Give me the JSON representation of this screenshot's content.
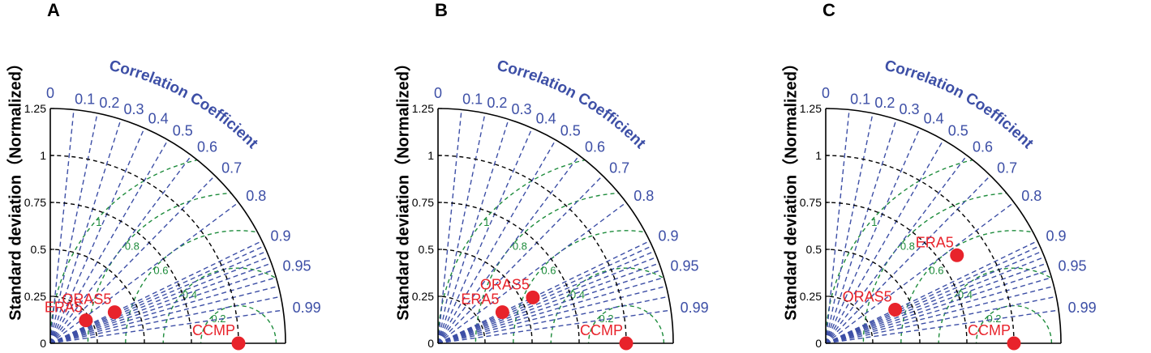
{
  "colors": {
    "corr": "#3d4fa6",
    "std": "#000000",
    "rms": "#1e8c3c",
    "point": "#e8232b",
    "point_label": "#e8232b"
  },
  "chart_data": [
    {
      "type": "taylor",
      "panel_label": "A",
      "ylabel": "Standard deviation（Normalized）",
      "corr_axis_label": "Correlation Coefficient",
      "std_ticks": [
        "0",
        "0.25",
        "0.5",
        "0.75",
        "1",
        "1.25"
      ],
      "std_range": [
        0,
        1.25
      ],
      "corr_ticks": [
        "0",
        "0.1",
        "0.2",
        "0.3",
        "0.4",
        "0.5",
        "0.6",
        "0.7",
        "0.8",
        "0.9",
        "0.95",
        "0.99"
      ],
      "std_arcs": [
        0.25,
        0.5,
        0.75,
        1
      ],
      "rms_arcs": [
        "0.2",
        "0.4",
        "0.6",
        "0.8",
        "1"
      ],
      "points": [
        {
          "name": "CCMP",
          "std": 1.0,
          "corr": 1.0
        },
        {
          "name": "ORAS5",
          "std": 0.38,
          "corr": 0.9
        },
        {
          "name": "ERA5",
          "std": 0.225,
          "corr": 0.84
        }
      ]
    },
    {
      "type": "taylor",
      "panel_label": "B",
      "ylabel": "Standard deviation（Normalized）",
      "corr_axis_label": "Correlation Coefficient",
      "std_ticks": [
        "0",
        "0.25",
        "0.5",
        "0.75",
        "1",
        "1.25"
      ],
      "std_range": [
        0,
        1.25
      ],
      "corr_ticks": [
        "0",
        "0.1",
        "0.2",
        "0.3",
        "0.4",
        "0.5",
        "0.6",
        "0.7",
        "0.8",
        "0.9",
        "0.95",
        "0.99"
      ],
      "std_arcs": [
        0.25,
        0.5,
        0.75,
        1
      ],
      "rms_arcs": [
        "0.2",
        "0.4",
        "0.6",
        "0.8",
        "1"
      ],
      "points": [
        {
          "name": "CCMP",
          "std": 1.0,
          "corr": 1.0
        },
        {
          "name": "ORAS5",
          "std": 0.56,
          "corr": 0.9
        },
        {
          "name": "ERA5",
          "std": 0.38,
          "corr": 0.9
        }
      ]
    },
    {
      "type": "taylor",
      "panel_label": "C",
      "ylabel": "Standard deviation（Normalized）",
      "corr_axis_label": "Correlation Coefficient",
      "std_ticks": [
        "0",
        "0.25",
        "0.5",
        "0.75",
        "1",
        "1.25"
      ],
      "std_range": [
        0,
        1.25
      ],
      "corr_ticks": [
        "0",
        "0.1",
        "0.2",
        "0.3",
        "0.4",
        "0.5",
        "0.6",
        "0.7",
        "0.8",
        "0.9",
        "0.95",
        "0.99"
      ],
      "std_arcs": [
        0.25,
        0.5,
        0.75,
        1
      ],
      "rms_arcs": [
        "0.2",
        "0.4",
        "0.6",
        "0.8",
        "1"
      ],
      "points": [
        {
          "name": "CCMP",
          "std": 1.0,
          "corr": 1.0
        },
        {
          "name": "ERA5",
          "std": 0.84,
          "corr": 0.83
        },
        {
          "name": "ORAS5",
          "std": 0.41,
          "corr": 0.9
        }
      ]
    }
  ]
}
